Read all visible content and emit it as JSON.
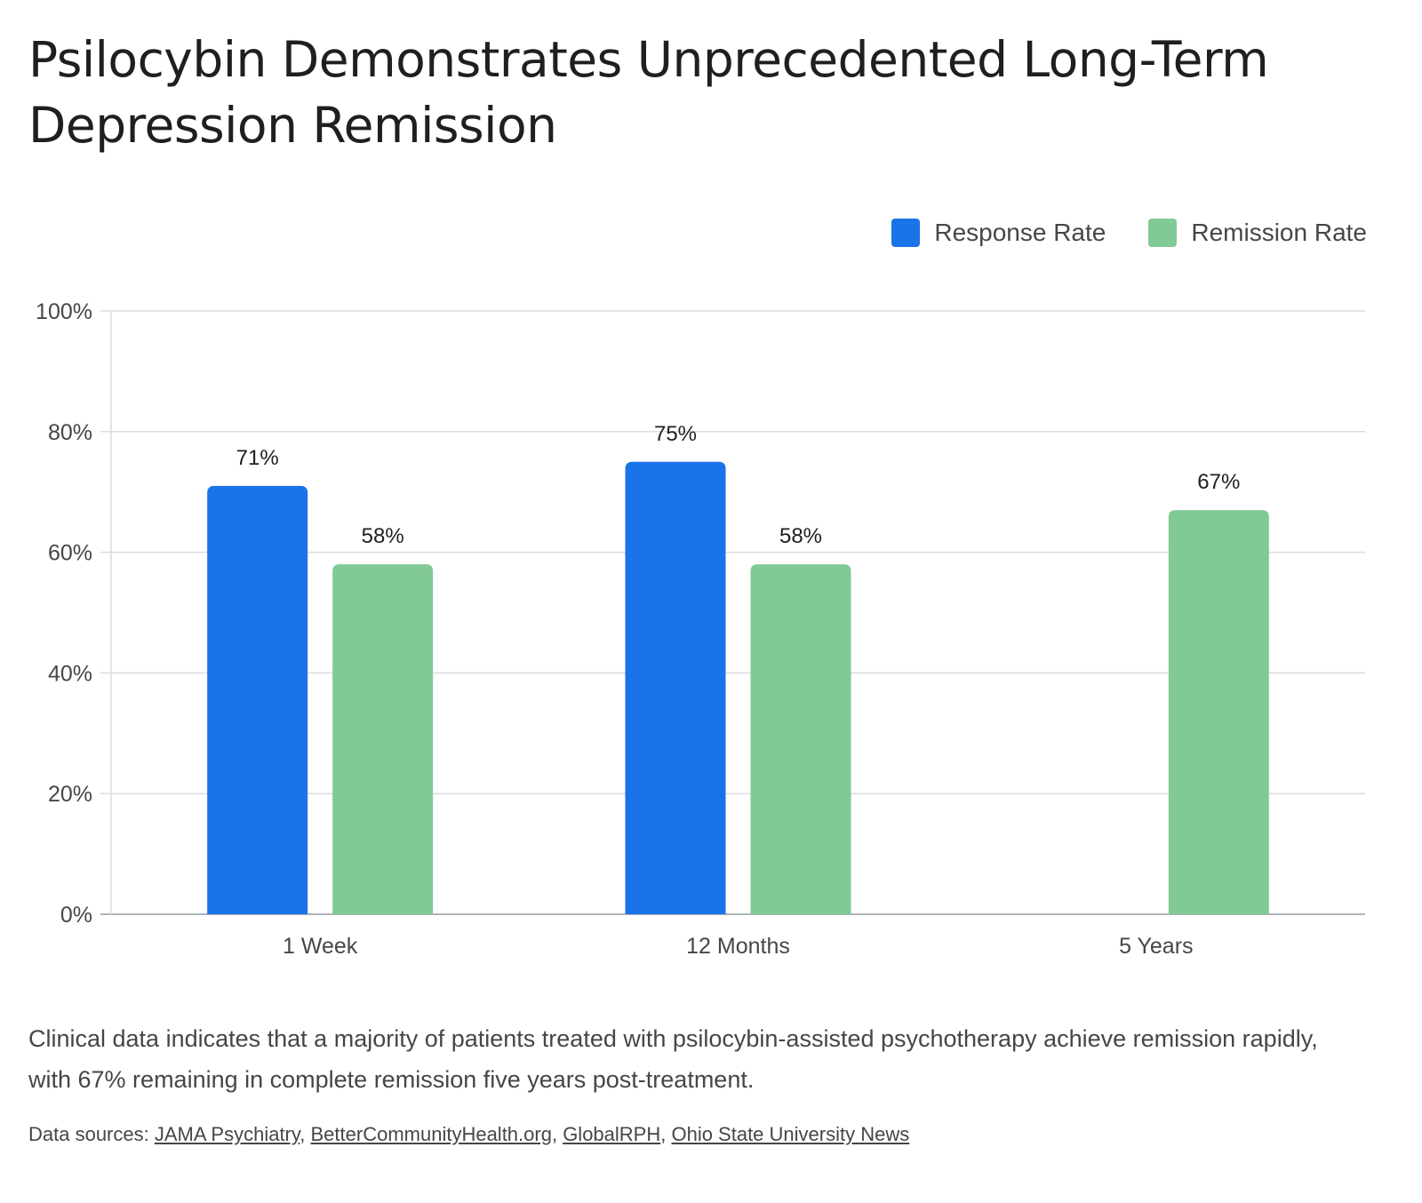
{
  "title": "Psilocybin Demonstrates Unprecedented Long-Term Depression Remission",
  "legend": [
    {
      "label": "Response Rate",
      "color": "#1a73e8"
    },
    {
      "label": "Remission Rate",
      "color": "#81c995"
    }
  ],
  "description": "Clinical data indicates that a majority of patients treated with psilocybin-assisted psychotherapy achieve remission rapidly, with 67% remaining in complete remission five years post-treatment.",
  "sources": {
    "prefix": "Data sources: ",
    "links": [
      "JAMA Psychiatry",
      "BetterCommunityHealth.org",
      "GlobalRPH",
      "Ohio State University News"
    ]
  },
  "chart_data": {
    "type": "bar",
    "categories": [
      "1 Week",
      "12 Months",
      "5 Years"
    ],
    "series": [
      {
        "name": "Response Rate",
        "values": [
          71,
          75,
          null
        ],
        "color": "#1a73e8"
      },
      {
        "name": "Remission Rate",
        "values": [
          58,
          58,
          67
        ],
        "color": "#81c995"
      }
    ],
    "ylim": [
      0,
      100
    ],
    "yticks": [
      "0%",
      "20%",
      "40%",
      "60%",
      "80%",
      "100%"
    ],
    "ytick_values": [
      0,
      20,
      40,
      60,
      80,
      100
    ],
    "data_label_suffix": "%",
    "grid": true,
    "legend_position": "top-right"
  }
}
